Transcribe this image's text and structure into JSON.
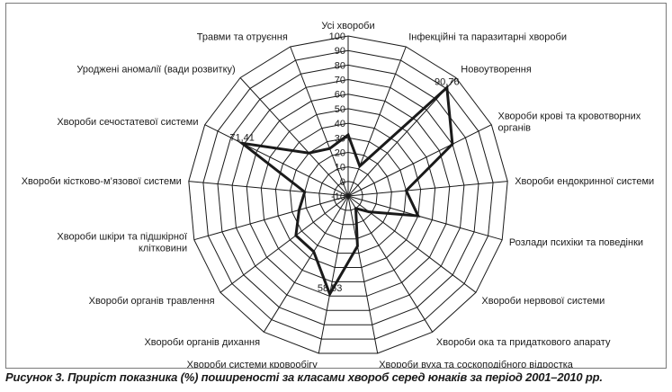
{
  "chart_data": {
    "type": "radar",
    "categories": [
      [
        "Усі хвороби"
      ],
      [
        "Інфекційні та паразитарні хвороби"
      ],
      [
        "Новоутворення"
      ],
      [
        "Хвороби крові та кровотворних",
        "органів"
      ],
      [
        "Хвороби ендокринної системи"
      ],
      [
        "Розлади психіки та поведінки"
      ],
      [
        "Хвороби нервової системи"
      ],
      [
        "Хвороби ока та придаткового апарату"
      ],
      [
        "Хвороби вуха та соскоподібного відростка"
      ],
      [
        "Хвороби системи кровообігу"
      ],
      [
        "Хвороби органів дихання"
      ],
      [
        "Хвороби органів травлення"
      ],
      [
        "Хвороби шкіри та підшкірної",
        "клітковини"
      ],
      [
        "Хвороби кістково-м’язової системи"
      ],
      [
        "Хвороби сечостатевої системи"
      ],
      [
        "Уроджені аномалії (вади розвитку)"
      ],
      [
        "Травми та отруєння"
      ]
    ],
    "values": [
      32,
      12,
      90.76,
      70,
      30,
      40,
      8,
      0,
      25,
      58.53,
      35,
      35,
      25,
      20,
      71.41,
      30,
      25
    ],
    "data_labels": [
      {
        "index": 2,
        "text": "90,76"
      },
      {
        "index": 9,
        "text": "58,53"
      },
      {
        "index": 14,
        "text": "71,41"
      }
    ],
    "r_ticks": [
      {
        "value": -10,
        "label": "-10"
      },
      {
        "value": 0,
        "label": "0"
      },
      {
        "value": 10,
        "label": "10"
      },
      {
        "value": 20,
        "label": "20"
      },
      {
        "value": 30,
        "label": "30"
      },
      {
        "value": 40,
        "label": "40"
      },
      {
        "value": 50,
        "label": "50"
      },
      {
        "value": 60,
        "label": "60"
      },
      {
        "value": 70,
        "label": "70"
      },
      {
        "value": 80,
        "label": "80"
      },
      {
        "value": 90,
        "label": "90"
      },
      {
        "value": 100,
        "label": "100"
      }
    ],
    "rlim": [
      -10,
      100
    ],
    "grid": true,
    "series_color": "#1a1a1a",
    "title": "Рисунок 3. Приріст показника (%) поширеності за класами хвороб серед юнаків за період 2001–2010 рр."
  }
}
